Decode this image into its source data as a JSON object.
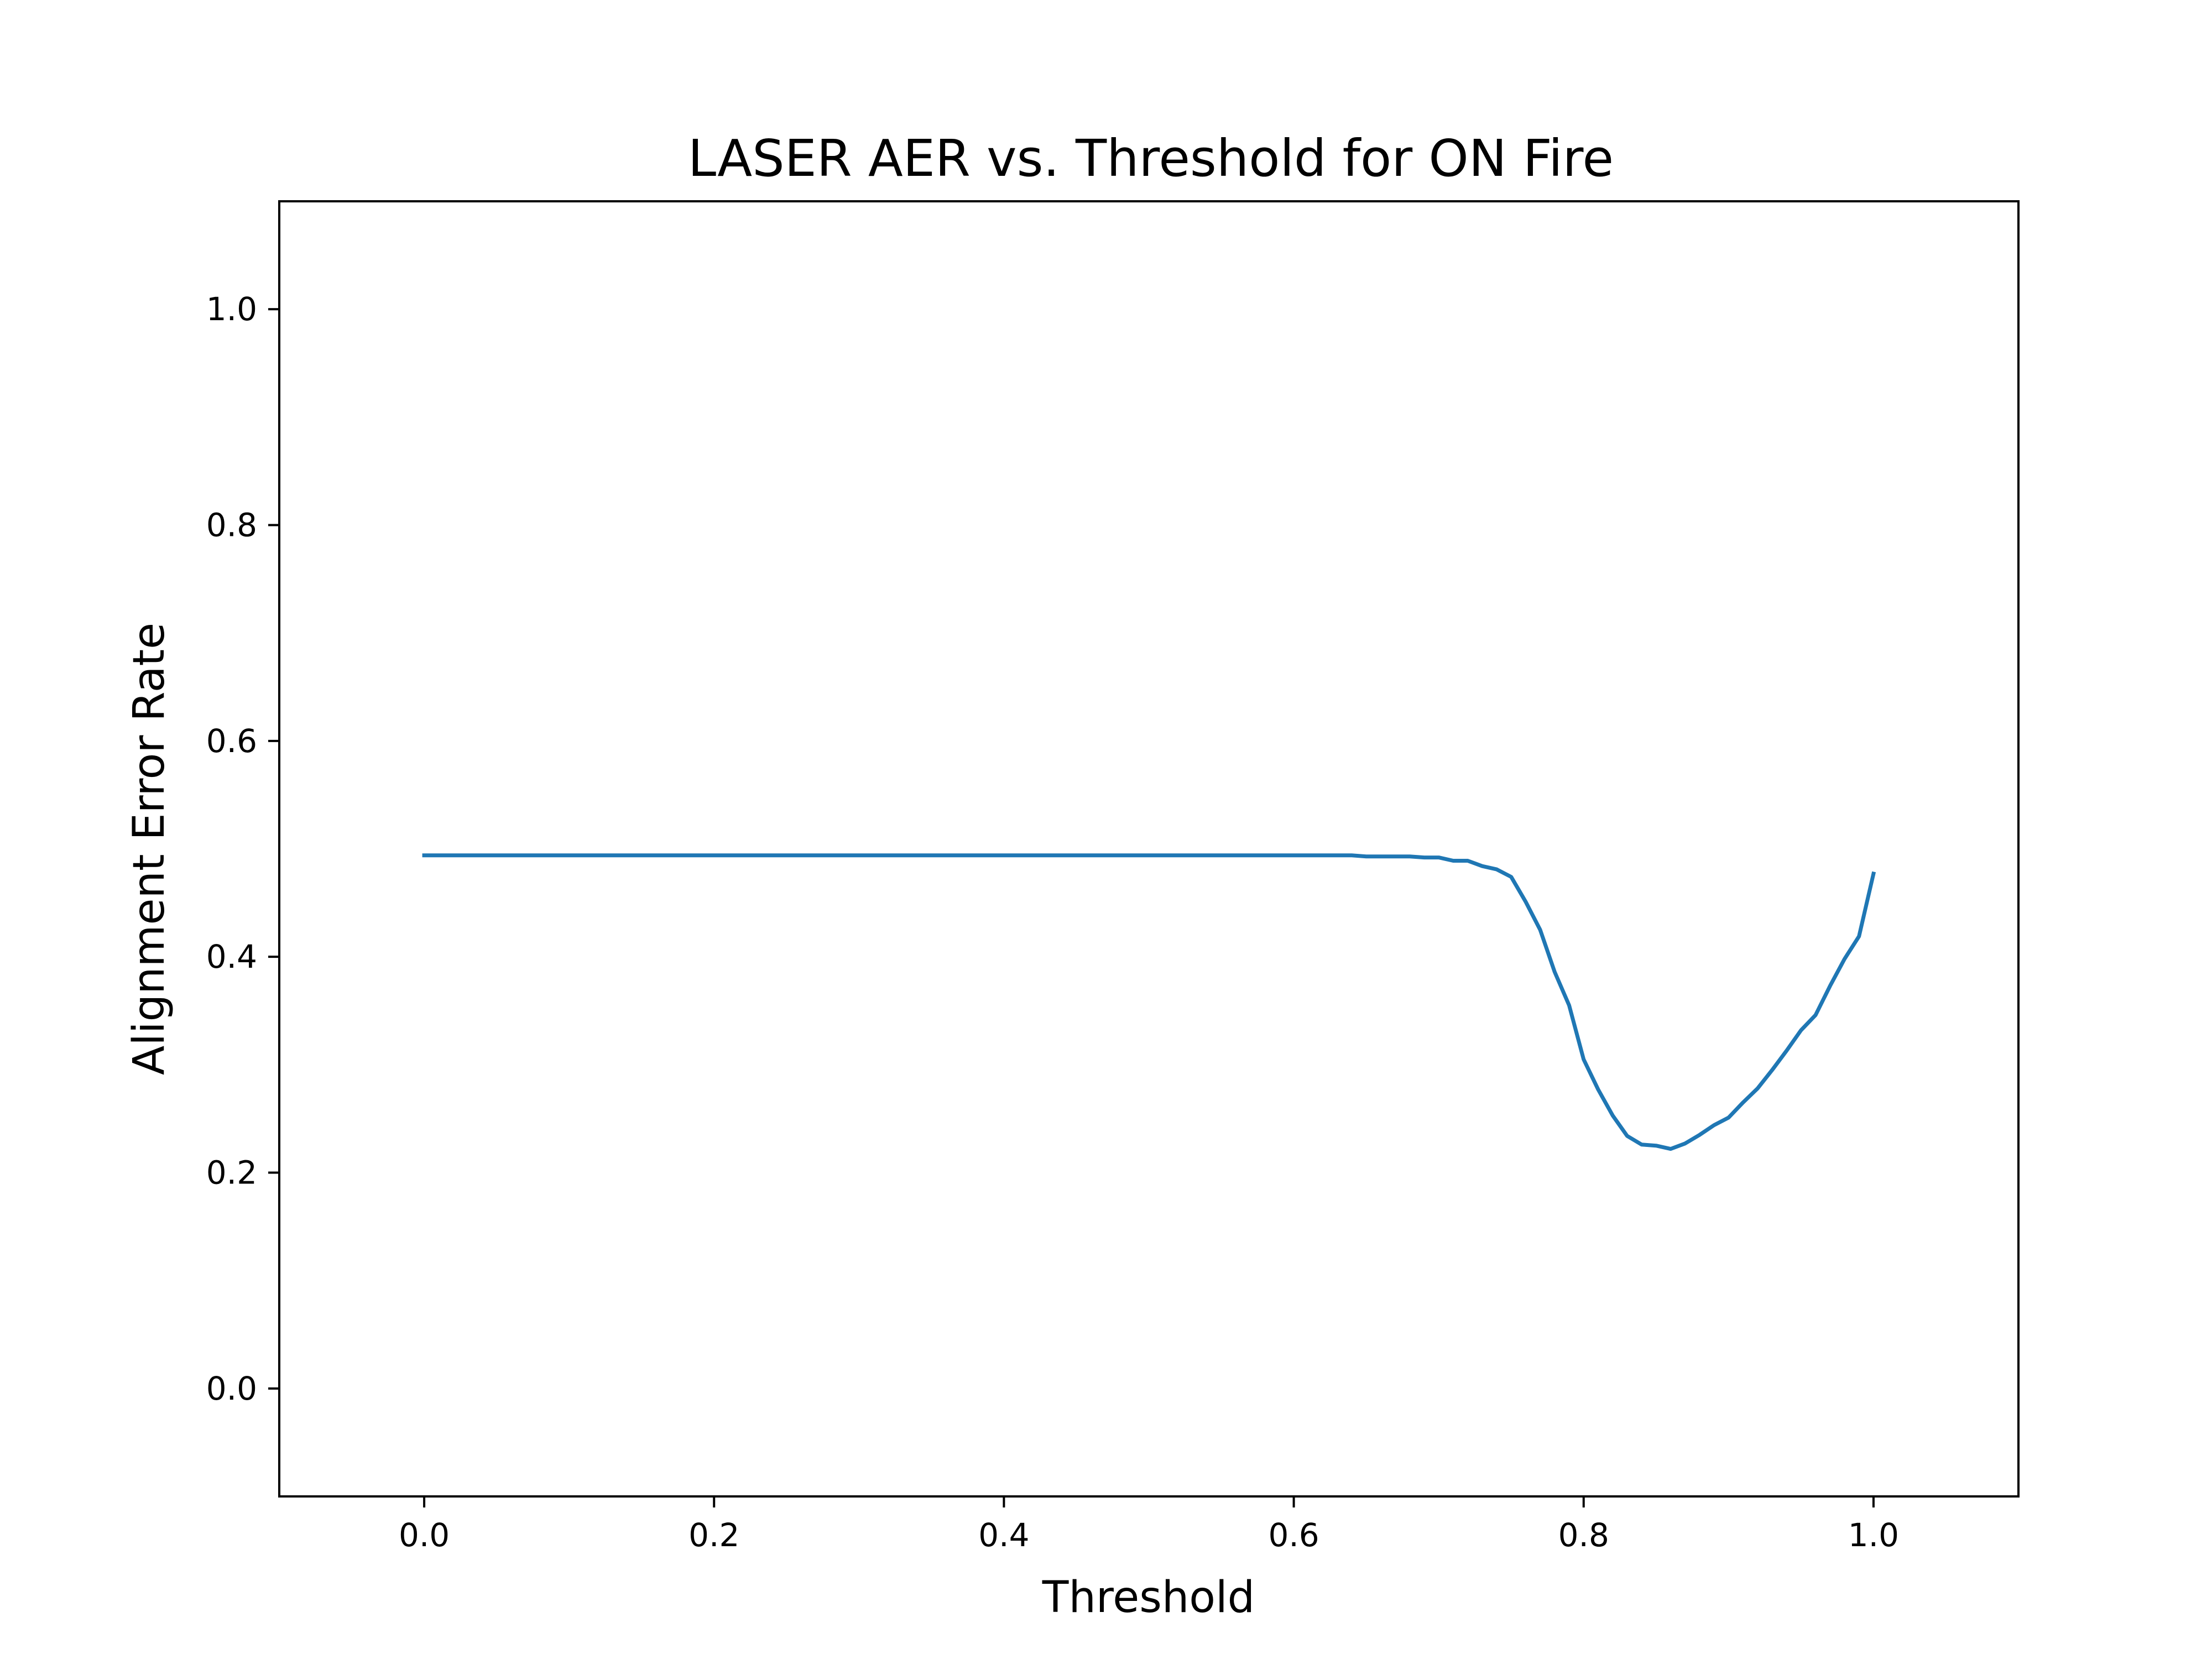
{
  "chart_data": {
    "type": "line",
    "title": "LASER AER vs. Threshold for ON Fire",
    "xlabel": "Threshold",
    "ylabel": "Alignment Error Rate",
    "xlim": [
      -0.1,
      1.1
    ],
    "ylim": [
      -0.1,
      1.1
    ],
    "xticks": [
      0.0,
      0.2,
      0.4,
      0.6,
      0.8,
      1.0
    ],
    "xtick_labels": [
      "0.0",
      "0.2",
      "0.4",
      "0.6",
      "0.8",
      "1.0"
    ],
    "yticks": [
      0.0,
      0.2,
      0.4,
      0.6,
      0.8,
      1.0
    ],
    "ytick_labels": [
      "0.0",
      "0.2",
      "0.4",
      "0.6",
      "0.8",
      "1.0"
    ],
    "grid": false,
    "line_color": "#1f77b4",
    "series": [
      {
        "x": [
          0.0,
          0.1,
          0.2,
          0.3,
          0.4,
          0.5,
          0.6,
          0.64,
          0.65,
          0.66,
          0.67,
          0.68,
          0.69,
          0.7,
          0.71,
          0.72,
          0.73,
          0.74,
          0.75,
          0.76,
          0.77,
          0.78,
          0.79,
          0.8,
          0.81,
          0.82,
          0.83,
          0.84,
          0.85,
          0.86,
          0.87,
          0.88,
          0.89,
          0.9,
          0.91,
          0.92,
          0.93,
          0.94,
          0.95,
          0.96,
          0.97,
          0.98,
          0.99,
          1.0
        ],
        "y": [
          0.494,
          0.494,
          0.494,
          0.494,
          0.494,
          0.494,
          0.494,
          0.494,
          0.493,
          0.493,
          0.493,
          0.493,
          0.492,
          0.492,
          0.489,
          0.489,
          0.484,
          0.481,
          0.474,
          0.451,
          0.425,
          0.386,
          0.355,
          0.305,
          0.277,
          0.253,
          0.234,
          0.226,
          0.225,
          0.222,
          0.227,
          0.235,
          0.244,
          0.251,
          0.265,
          0.278,
          0.295,
          0.313,
          0.332,
          0.346,
          0.373,
          0.398,
          0.419,
          0.477
        ]
      }
    ]
  }
}
